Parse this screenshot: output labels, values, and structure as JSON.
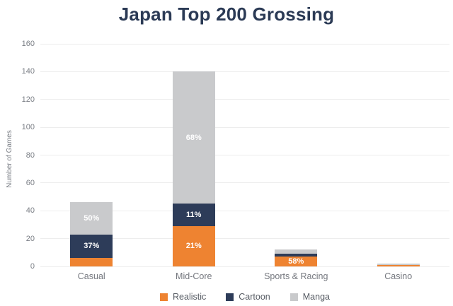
{
  "title": "Japan Top 200 Grossing",
  "colors": {
    "title_text": "#2B3A55",
    "realistic_orange": "#EE8331",
    "cartoon_navy": "#2D3C59",
    "manga_gray": "#C9CACC",
    "gridline": "#EDEDED",
    "axis_text": "#7A7E85",
    "category_text": "#74777E",
    "legend_text": "#565B63",
    "segment_label_text": "#FFFFFF",
    "background": "#FFFFFF"
  },
  "chart_data": {
    "type": "bar",
    "stacked": true,
    "title": "Japan Top 200 Grossing",
    "xlabel": "",
    "ylabel": "Number of Games",
    "ylim": [
      0,
      160
    ],
    "ytick_step": 20,
    "ytick_labels": [
      "0",
      "20",
      "40",
      "60",
      "80",
      "100",
      "120",
      "140",
      "160"
    ],
    "grid": true,
    "legend_position": "bottom",
    "categories": [
      "Casual",
      "Mid-Core",
      "Sports & Racing",
      "Casino"
    ],
    "totals": [
      46,
      140,
      12,
      2
    ],
    "series": [
      {
        "name": "Realistic",
        "color": "#EE8331",
        "values": [
          6,
          29,
          7,
          1
        ],
        "segment_labels": [
          "",
          "21%",
          "58%",
          ""
        ]
      },
      {
        "name": "Cartoon",
        "color": "#2D3C59",
        "values": [
          17,
          16,
          2,
          0
        ],
        "segment_labels": [
          "37%",
          "11%",
          "",
          ""
        ]
      },
      {
        "name": "Manga",
        "color": "#C9CACC",
        "values": [
          23,
          95,
          3,
          1
        ],
        "segment_labels": [
          "50%",
          "68%",
          "",
          ""
        ]
      }
    ]
  }
}
